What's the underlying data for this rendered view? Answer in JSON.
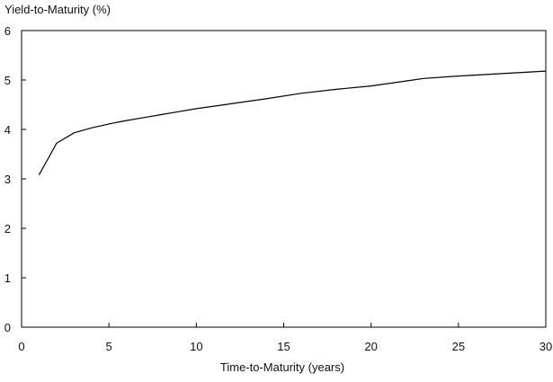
{
  "chart_data": {
    "type": "line",
    "title": "",
    "xlabel": "Time-to-Maturity (years)",
    "ylabel": "Yield-to-Maturity (%)",
    "xlim": [
      0,
      30
    ],
    "ylim": [
      0,
      6
    ],
    "x_ticks": [
      "0",
      "5",
      "10",
      "15",
      "20",
      "25",
      "30"
    ],
    "y_ticks": [
      "0",
      "1",
      "2",
      "3",
      "4",
      "5",
      "6"
    ],
    "grid": false,
    "legend": "none",
    "line_color": "#000000",
    "series": [
      {
        "x": [
          1,
          1.5,
          2,
          3,
          4,
          5,
          6,
          7,
          8,
          9,
          10,
          12,
          14,
          16,
          18,
          20,
          22,
          23,
          25,
          27,
          30
        ],
        "values": [
          3.08,
          3.4,
          3.72,
          3.93,
          4.03,
          4.11,
          4.18,
          4.24,
          4.3,
          4.36,
          4.42,
          4.52,
          4.62,
          4.73,
          4.81,
          4.88,
          4.98,
          5.03,
          5.08,
          5.12,
          5.18
        ]
      }
    ]
  }
}
